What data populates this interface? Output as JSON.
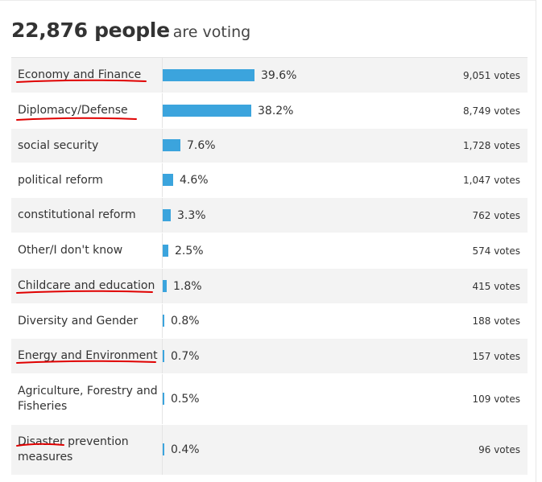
{
  "header": {
    "count": "22,876 people",
    "suffix": "are voting"
  },
  "colors": {
    "bar": "#3ba4dd",
    "annotation": "#e00000"
  },
  "rows": [
    {
      "label": "Economy and Finance",
      "percent": 39.6,
      "percent_label": "39.6%",
      "votes": "9,051 votes",
      "underlined": true
    },
    {
      "label": "Diplomacy/Defense",
      "percent": 38.2,
      "percent_label": "38.2%",
      "votes": "8,749 votes",
      "underlined": true
    },
    {
      "label": "social security",
      "percent": 7.6,
      "percent_label": "7.6%",
      "votes": "1,728 votes",
      "underlined": false
    },
    {
      "label": "political reform",
      "percent": 4.6,
      "percent_label": "4.6%",
      "votes": "1,047 votes",
      "underlined": false
    },
    {
      "label": "constitutional reform",
      "percent": 3.3,
      "percent_label": "3.3%",
      "votes": "762 votes",
      "underlined": false
    },
    {
      "label": "Other/I don't know",
      "percent": 2.5,
      "percent_label": "2.5%",
      "votes": "574 votes",
      "underlined": false
    },
    {
      "label": "Childcare and education",
      "percent": 1.8,
      "percent_label": "1.8%",
      "votes": "415 votes",
      "underlined": true
    },
    {
      "label": "Diversity and Gender",
      "percent": 0.8,
      "percent_label": "0.8%",
      "votes": "188 votes",
      "underlined": false
    },
    {
      "label": "Energy and Environment",
      "percent": 0.7,
      "percent_label": "0.7%",
      "votes": "157 votes",
      "underlined": true
    },
    {
      "label": "Agriculture, Forestry and Fisheries",
      "percent": 0.5,
      "percent_label": "0.5%",
      "votes": "109 votes",
      "underlined": false
    },
    {
      "label": "Disaster prevention measures",
      "percent": 0.4,
      "percent_label": "0.4%",
      "votes": "96 votes",
      "underlined": true
    }
  ]
}
